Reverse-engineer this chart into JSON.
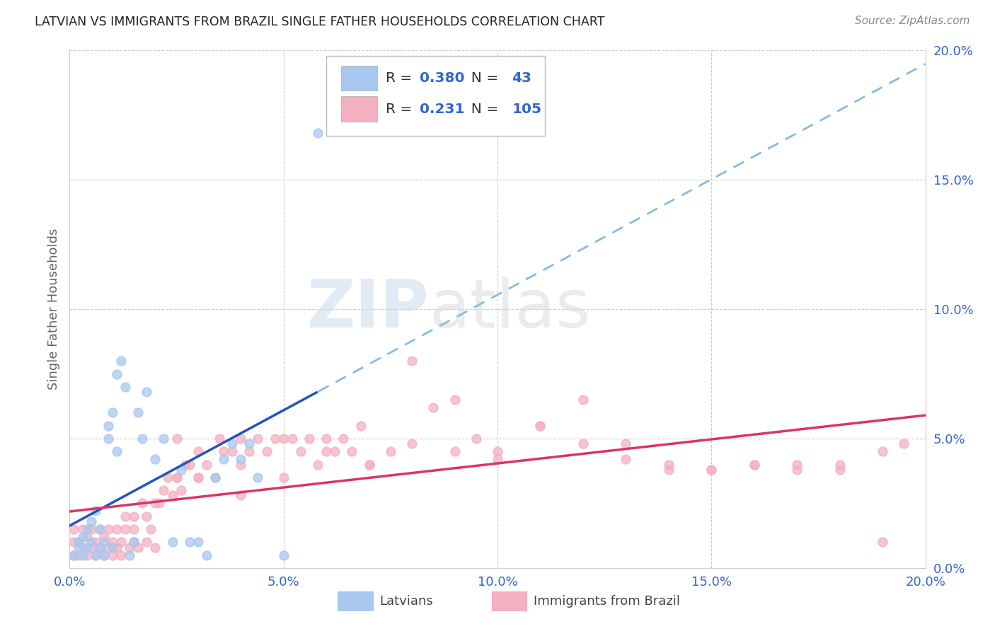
{
  "title": "LATVIAN VS IMMIGRANTS FROM BRAZIL SINGLE FATHER HOUSEHOLDS CORRELATION CHART",
  "source": "Source: ZipAtlas.com",
  "ylabel": "Single Father Households",
  "xlim": [
    0.0,
    0.2
  ],
  "ylim": [
    0.0,
    0.2
  ],
  "latvian_R": 0.38,
  "latvian_N": 43,
  "brazil_R": 0.231,
  "brazil_N": 105,
  "latvian_color": "#a8c8f0",
  "brazil_color": "#f5b0c0",
  "latvian_line_color": "#2255bb",
  "brazil_line_color": "#dd3366",
  "regression_dash_color": "#88bbdd",
  "watermark_zip": "ZIP",
  "watermark_atlas": "atlas",
  "background_color": "#ffffff",
  "latvian_x": [
    0.001,
    0.002,
    0.002,
    0.003,
    0.003,
    0.004,
    0.004,
    0.005,
    0.005,
    0.006,
    0.006,
    0.007,
    0.007,
    0.008,
    0.008,
    0.009,
    0.009,
    0.01,
    0.01,
    0.011,
    0.011,
    0.012,
    0.013,
    0.014,
    0.015,
    0.016,
    0.017,
    0.018,
    0.02,
    0.022,
    0.024,
    0.026,
    0.028,
    0.03,
    0.032,
    0.034,
    0.036,
    0.038,
    0.04,
    0.042,
    0.044,
    0.05,
    0.058
  ],
  "latvian_y": [
    0.005,
    0.008,
    0.01,
    0.005,
    0.012,
    0.008,
    0.015,
    0.01,
    0.018,
    0.005,
    0.022,
    0.008,
    0.015,
    0.01,
    0.005,
    0.05,
    0.055,
    0.06,
    0.008,
    0.045,
    0.075,
    0.08,
    0.07,
    0.005,
    0.01,
    0.06,
    0.05,
    0.068,
    0.042,
    0.05,
    0.01,
    0.038,
    0.01,
    0.01,
    0.005,
    0.035,
    0.042,
    0.048,
    0.042,
    0.048,
    0.035,
    0.005,
    0.168
  ],
  "brazil_x": [
    0.001,
    0.001,
    0.001,
    0.002,
    0.002,
    0.003,
    0.003,
    0.004,
    0.004,
    0.005,
    0.005,
    0.006,
    0.006,
    0.007,
    0.007,
    0.008,
    0.008,
    0.009,
    0.009,
    0.01,
    0.01,
    0.011,
    0.011,
    0.012,
    0.012,
    0.013,
    0.013,
    0.014,
    0.015,
    0.015,
    0.016,
    0.017,
    0.018,
    0.018,
    0.019,
    0.02,
    0.021,
    0.022,
    0.023,
    0.024,
    0.025,
    0.026,
    0.027,
    0.028,
    0.03,
    0.032,
    0.034,
    0.036,
    0.038,
    0.04,
    0.042,
    0.044,
    0.046,
    0.048,
    0.05,
    0.052,
    0.054,
    0.056,
    0.058,
    0.06,
    0.062,
    0.064,
    0.066,
    0.068,
    0.07,
    0.075,
    0.08,
    0.085,
    0.09,
    0.095,
    0.1,
    0.11,
    0.12,
    0.13,
    0.14,
    0.15,
    0.16,
    0.17,
    0.18,
    0.19,
    0.025,
    0.03,
    0.035,
    0.04,
    0.05,
    0.06,
    0.07,
    0.08,
    0.09,
    0.1,
    0.11,
    0.12,
    0.13,
    0.14,
    0.15,
    0.16,
    0.17,
    0.18,
    0.19,
    0.195,
    0.015,
    0.02,
    0.025,
    0.03,
    0.04
  ],
  "brazil_y": [
    0.005,
    0.01,
    0.015,
    0.005,
    0.01,
    0.008,
    0.015,
    0.005,
    0.012,
    0.008,
    0.015,
    0.005,
    0.01,
    0.008,
    0.015,
    0.005,
    0.012,
    0.008,
    0.015,
    0.01,
    0.005,
    0.015,
    0.008,
    0.01,
    0.005,
    0.015,
    0.02,
    0.008,
    0.01,
    0.015,
    0.008,
    0.025,
    0.01,
    0.02,
    0.015,
    0.008,
    0.025,
    0.03,
    0.035,
    0.028,
    0.035,
    0.03,
    0.04,
    0.04,
    0.035,
    0.04,
    0.035,
    0.045,
    0.045,
    0.04,
    0.045,
    0.05,
    0.045,
    0.05,
    0.035,
    0.05,
    0.045,
    0.05,
    0.04,
    0.05,
    0.045,
    0.05,
    0.045,
    0.055,
    0.04,
    0.045,
    0.08,
    0.062,
    0.065,
    0.05,
    0.045,
    0.055,
    0.065,
    0.048,
    0.04,
    0.038,
    0.04,
    0.04,
    0.038,
    0.045,
    0.05,
    0.045,
    0.05,
    0.05,
    0.05,
    0.045,
    0.04,
    0.048,
    0.045,
    0.042,
    0.055,
    0.048,
    0.042,
    0.038,
    0.038,
    0.04,
    0.038,
    0.04,
    0.01,
    0.048,
    0.02,
    0.025,
    0.035,
    0.035,
    0.028
  ]
}
